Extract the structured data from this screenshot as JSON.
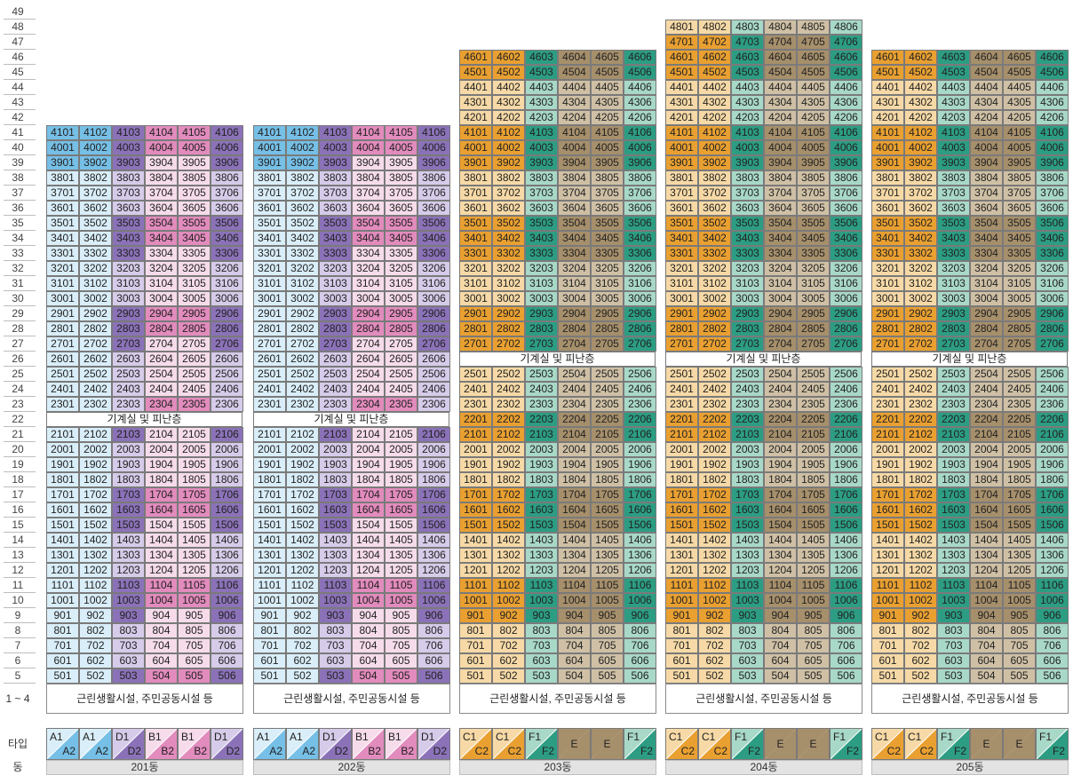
{
  "floor_axis": {
    "floors": [
      "49",
      "48",
      "47",
      "46",
      "45",
      "44",
      "43",
      "42",
      "41",
      "40",
      "39",
      "38",
      "37",
      "36",
      "35",
      "34",
      "33",
      "32",
      "31",
      "30",
      "29",
      "28",
      "27",
      "26",
      "25",
      "24",
      "23",
      "22",
      "21",
      "20",
      "19",
      "18",
      "17",
      "16",
      "15",
      "14",
      "13",
      "12",
      "11",
      "10",
      "9",
      "8",
      "7",
      "6",
      "5"
    ],
    "base_label": "1 ~ 4",
    "type_label": "타입",
    "building_label": "동"
  },
  "colors": {
    "A_blue": "#76bfe6",
    "A_blue_light": "#d9eef9",
    "B_pink": "#e28bbd",
    "B_pink_light": "#f6dceb",
    "D_purple": "#8b72b8",
    "D_purple_light": "#d6cbe9",
    "C_orange": "#e9a031",
    "C_orange_light": "#f6d9a6",
    "F_green": "#2c9d83",
    "F_green_light": "#a8d8c7",
    "E_brown": "#a68f6b",
    "E_brown_light": "#cfc0a5",
    "white": "#ffffff"
  },
  "buildings": [
    {
      "name": "201동",
      "top_floor": 41,
      "refuge_floor_label": "기계실 및 피난층",
      "refuge_floor": 22,
      "base_label": "근린생활시설, 주민공동시설 등",
      "column_families": [
        "A",
        "A",
        "D",
        "B",
        "B",
        "D"
      ],
      "types": [
        {
          "top": "A1",
          "bottom": "A2",
          "family": "A"
        },
        {
          "top": "A1",
          "bottom": "A2",
          "family": "A"
        },
        {
          "top": "D1",
          "bottom": "D2",
          "family": "D"
        },
        {
          "top": "B1",
          "bottom": "B2",
          "family": "B"
        },
        {
          "top": "B1",
          "bottom": "B2",
          "family": "B"
        },
        {
          "top": "D1",
          "bottom": "D2",
          "family": "D"
        }
      ]
    },
    {
      "name": "202동",
      "top_floor": 41,
      "refuge_floor_label": "기계실 및 피난층",
      "refuge_floor": 22,
      "base_label": "근린생활시설, 주민공동시설 등",
      "column_families": [
        "A",
        "A",
        "D",
        "B",
        "B",
        "D"
      ],
      "types": [
        {
          "top": "A1",
          "bottom": "A2",
          "family": "A"
        },
        {
          "top": "A1",
          "bottom": "A2",
          "family": "A"
        },
        {
          "top": "D1",
          "bottom": "D2",
          "family": "D"
        },
        {
          "top": "B1",
          "bottom": "B2",
          "family": "B"
        },
        {
          "top": "B1",
          "bottom": "B2",
          "family": "B"
        },
        {
          "top": "D1",
          "bottom": "D2",
          "family": "D"
        }
      ]
    },
    {
      "name": "203동",
      "top_floor": 46,
      "refuge_floor_label": "기계실 및 피난층",
      "refuge_floor": 26,
      "base_label": "근린생활시설, 주민공동시설 등",
      "column_families": [
        "C",
        "C",
        "F",
        "E",
        "E",
        "F"
      ],
      "types": [
        {
          "top": "C1",
          "bottom": "C2",
          "family": "C"
        },
        {
          "top": "C1",
          "bottom": "C2",
          "family": "C"
        },
        {
          "top": "F1",
          "bottom": "F2",
          "family": "F"
        },
        {
          "top": "E",
          "bottom": "",
          "family": "E"
        },
        {
          "top": "E",
          "bottom": "",
          "family": "E"
        },
        {
          "top": "F1",
          "bottom": "F2",
          "family": "F"
        }
      ]
    },
    {
      "name": "204동",
      "top_floor": 48,
      "refuge_floor_label": "기계실 및 피난층",
      "refuge_floor": 26,
      "base_label": "근린생활시설, 주민공동시설 등",
      "column_families": [
        "C",
        "C",
        "F",
        "E",
        "E",
        "F"
      ],
      "types": [
        {
          "top": "C1",
          "bottom": "C2",
          "family": "C"
        },
        {
          "top": "C1",
          "bottom": "C2",
          "family": "C"
        },
        {
          "top": "F1",
          "bottom": "F2",
          "family": "F"
        },
        {
          "top": "E",
          "bottom": "",
          "family": "E"
        },
        {
          "top": "E",
          "bottom": "",
          "family": "E"
        },
        {
          "top": "F1",
          "bottom": "F2",
          "family": "F"
        }
      ]
    },
    {
      "name": "205동",
      "top_floor": 46,
      "refuge_floor_label": "기계실 및 피난층",
      "refuge_floor": 26,
      "base_label": "근린생활시설, 주민공동시설 등",
      "column_families": [
        "C",
        "C",
        "F",
        "E",
        "E",
        "F"
      ],
      "types": [
        {
          "top": "C1",
          "bottom": "C2",
          "family": "C"
        },
        {
          "top": "C1",
          "bottom": "C2",
          "family": "C"
        },
        {
          "top": "F1",
          "bottom": "F2",
          "family": "F"
        },
        {
          "top": "E",
          "bottom": "",
          "family": "E"
        },
        {
          "top": "E",
          "bottom": "",
          "family": "E"
        },
        {
          "top": "F1",
          "bottom": "F2",
          "family": "F"
        }
      ]
    }
  ],
  "shade_rules": {
    "ab_dark_floors": [
      39,
      40,
      41
    ],
    "d_dark_floors": [
      3,
      4,
      5,
      9,
      10,
      11,
      15,
      16,
      17,
      21,
      27,
      28,
      29,
      33,
      34,
      35,
      39,
      40,
      41
    ],
    "b_dark_floors": [
      4,
      5,
      10,
      11,
      16,
      17,
      22,
      23,
      28,
      29,
      34,
      35,
      40,
      41
    ],
    "cef_dark_floors": [
      9,
      10,
      11,
      15,
      16,
      17,
      21,
      22,
      27,
      28,
      29,
      33,
      34,
      35,
      39,
      40,
      41,
      45,
      46,
      47
    ]
  }
}
